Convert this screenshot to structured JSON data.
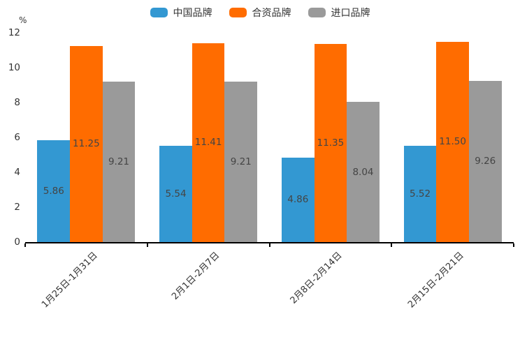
{
  "chart_data": {
    "type": "bar",
    "unit_label": "%",
    "categories": [
      "1月25日-1月31日",
      "2月1日-2月7日",
      "2月8日-2月14日",
      "2月15日-2月21日"
    ],
    "series": [
      {
        "name": "中国品牌",
        "color": "#3398D2",
        "values": [
          5.86,
          5.54,
          4.86,
          5.52
        ]
      },
      {
        "name": "合资品牌",
        "color": "#FF6C00",
        "values": [
          11.25,
          11.41,
          11.35,
          11.5
        ]
      },
      {
        "name": "进口品牌",
        "color": "#9A9A9A",
        "values": [
          9.21,
          9.21,
          8.04,
          9.26
        ]
      }
    ],
    "yticks": [
      0,
      2,
      4,
      6,
      8,
      10,
      12
    ],
    "ylim": [
      0,
      12
    ],
    "grid": false,
    "legend_position": "top",
    "value_labels_inside": true,
    "value_label_format": "2dp",
    "axis_color": "#000000",
    "tick_label_color": "#333333",
    "value_label_color": "#444444"
  }
}
